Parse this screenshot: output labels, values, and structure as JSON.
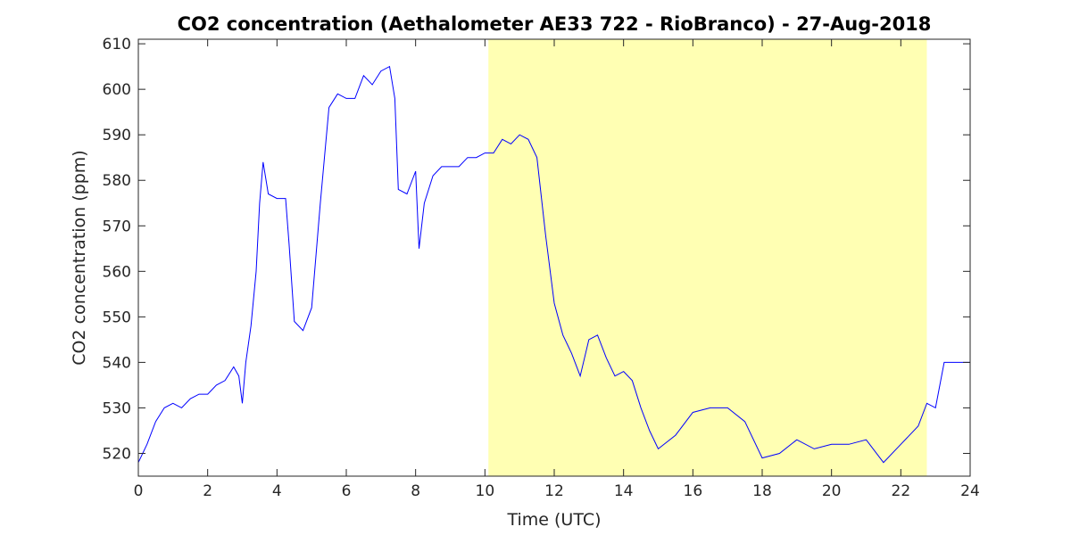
{
  "chart_data": {
    "type": "line",
    "title": "CO2 concentration (Aethalometer AE33 722 - RioBranco) - 27-Aug-2018",
    "xlabel": "Time (UTC)",
    "ylabel": "CO2 concentration (ppm)",
    "xlim": [
      0,
      24
    ],
    "ylim": [
      515,
      611
    ],
    "xticks": [
      0,
      2,
      4,
      6,
      8,
      10,
      12,
      14,
      16,
      18,
      20,
      22,
      24
    ],
    "yticks": [
      520,
      530,
      540,
      550,
      560,
      570,
      580,
      590,
      600,
      610
    ],
    "grid": false,
    "line_color": "#0000ff",
    "highlight": {
      "x_start": 10.1,
      "x_end": 22.75,
      "color": "#ffffb3"
    },
    "series": [
      {
        "x": [
          0.0,
          0.25,
          0.5,
          0.75,
          1.0,
          1.25,
          1.5,
          1.75,
          2.0,
          2.25,
          2.5,
          2.75,
          2.9,
          3.0,
          3.1,
          3.25,
          3.4,
          3.5,
          3.6,
          3.75,
          4.0,
          4.25,
          4.35,
          4.5,
          4.75,
          5.0,
          5.25,
          5.5,
          5.75,
          6.0,
          6.25,
          6.5,
          6.75,
          7.0,
          7.25,
          7.4,
          7.5,
          7.75,
          8.0,
          8.1,
          8.25,
          8.5,
          8.75,
          9.0,
          9.25,
          9.5,
          9.75,
          10.0,
          10.25,
          10.5,
          10.75,
          11.0,
          11.25,
          11.5,
          11.75,
          12.0,
          12.25,
          12.5,
          12.75,
          13.0,
          13.25,
          13.5,
          13.75,
          14.0,
          14.25,
          14.5,
          14.75,
          15.0,
          15.5,
          16.0,
          16.5,
          17.0,
          17.5,
          18.0,
          18.5,
          19.0,
          19.5,
          20.0,
          20.5,
          21.0,
          21.5,
          22.0,
          22.5,
          22.75,
          23.0,
          23.25,
          23.5,
          24.0
        ],
        "values": [
          518,
          522,
          527,
          530,
          531,
          530,
          532,
          533,
          533,
          535,
          536,
          539,
          537,
          531,
          540,
          548,
          560,
          575,
          584,
          577,
          576,
          576,
          566,
          549,
          547,
          552,
          575,
          596,
          599,
          598,
          598,
          603,
          601,
          604,
          605,
          598,
          578,
          577,
          582,
          565,
          575,
          581,
          583,
          583,
          583,
          585,
          585,
          586,
          586,
          589,
          588,
          590,
          589,
          585,
          568,
          553,
          546,
          542,
          537,
          545,
          546,
          541,
          537,
          538,
          536,
          530,
          525,
          521,
          524,
          529,
          530,
          530,
          527,
          519,
          520,
          523,
          521,
          522,
          522,
          523,
          518,
          522,
          526,
          531,
          530,
          540,
          540,
          540
        ]
      }
    ]
  }
}
